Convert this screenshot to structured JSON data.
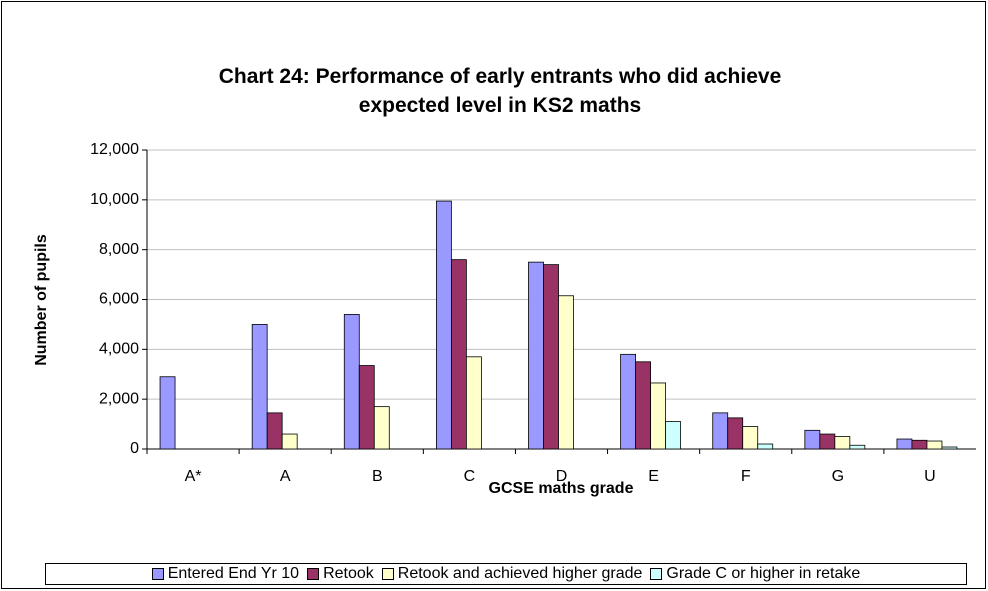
{
  "chart_data": {
    "type": "bar",
    "title": "Chart 24: Performance of early entrants who did achieve expected level in KS2 maths",
    "x_label": "GCSE maths grade",
    "y_label": "Number of pupils",
    "categories": [
      "A*",
      "A",
      "B",
      "C",
      "D",
      "E",
      "F",
      "G",
      "U"
    ],
    "series": [
      {
        "name": "Entered End Yr 10",
        "color": "#9999ff",
        "values": [
          2900,
          5000,
          5400,
          9950,
          7500,
          3800,
          1450,
          750,
          400
        ]
      },
      {
        "name": "Retook",
        "color": "#993366",
        "values": [
          0,
          1450,
          3350,
          7600,
          7400,
          3500,
          1250,
          600,
          350
        ]
      },
      {
        "name": "Retook and achieved higher grade",
        "color": "#ffffcc",
        "values": [
          0,
          600,
          1700,
          3700,
          6150,
          2650,
          900,
          500,
          320
        ]
      },
      {
        "name": "Grade C or higher in retake",
        "color": "#ccffff",
        "values": [
          0,
          0,
          0,
          0,
          0,
          1100,
          200,
          150,
          80
        ]
      }
    ],
    "ylim": [
      0,
      12000
    ],
    "yticks": [
      0,
      {
        "value": 2000,
        "label": "2,000"
      },
      {
        "value": 4000,
        "label": "4,000"
      },
      {
        "value": 6000,
        "label": "6,000"
      },
      {
        "value": 8000,
        "label": "8,000"
      },
      {
        "value": 10000,
        "label": "10,000"
      },
      {
        "value": 12000,
        "label": "12,000"
      }
    ],
    "grid": true
  }
}
